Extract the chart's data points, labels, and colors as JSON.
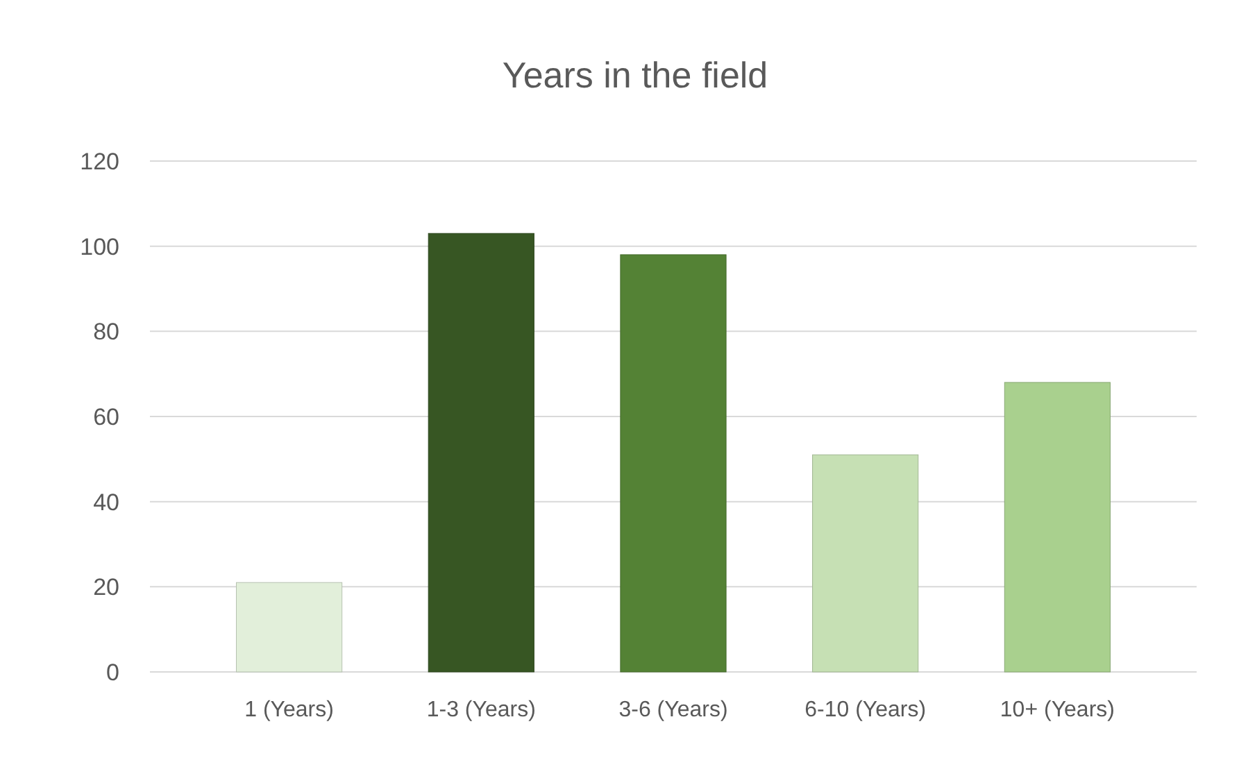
{
  "chart_data": {
    "type": "bar",
    "title": "Years in the field",
    "categories": [
      "1 (Years)",
      "1-3 (Years)",
      "3-6 (Years)",
      "6-10 (Years)",
      "10+ (Years)"
    ],
    "values": [
      21,
      103,
      98,
      51,
      68
    ],
    "colors": [
      "#e2efda",
      "#375623",
      "#548235",
      "#c6e0b4",
      "#a9d08e"
    ],
    "ylim": [
      0,
      120
    ],
    "yticks": [
      0,
      20,
      40,
      60,
      80,
      100,
      120
    ],
    "grid": "y"
  }
}
